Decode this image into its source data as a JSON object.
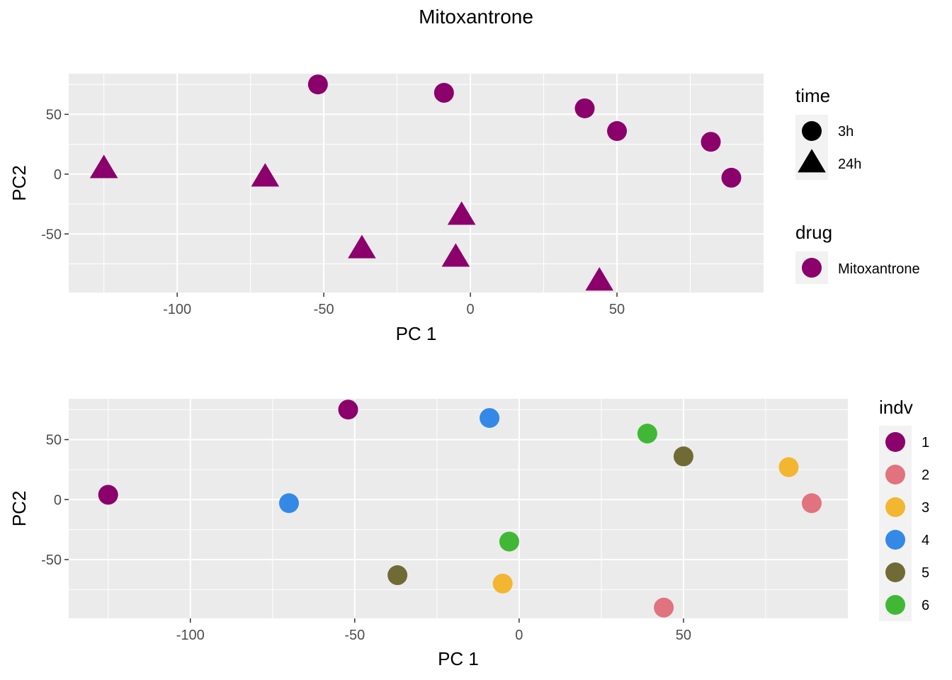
{
  "figure_title": "Mitoxantrone",
  "colors": {
    "panel_bg": "#EBEBEB",
    "grid_major": "#FFFFFF",
    "drug_mitoxantrone": "#8B006B",
    "indv": {
      "1": "#8B006B",
      "2": "#E0737D",
      "3": "#F2B630",
      "4": "#3489E6",
      "5": "#706B35",
      "6": "#40B836"
    }
  },
  "chart_data": [
    {
      "type": "scatter",
      "title": "",
      "xlabel": "PC 1",
      "ylabel": "PC2",
      "xlim": [
        -137,
        100
      ],
      "ylim": [
        -99,
        84
      ],
      "grid": true,
      "x_ticks": [
        -100,
        -50,
        0,
        50
      ],
      "x_tick_labels": [
        "-100",
        "-50",
        "0",
        "50"
      ],
      "y_ticks": [
        50,
        0,
        -50
      ],
      "y_tick_labels": [
        "50",
        "0",
        "-50"
      ],
      "legends": [
        {
          "title": "time",
          "entries": [
            {
              "label": "3h",
              "shape": "circle"
            },
            {
              "label": "24h",
              "shape": "triangle"
            }
          ]
        },
        {
          "title": "drug",
          "entries": [
            {
              "label": "Mitoxantrone",
              "shape": "circle",
              "color_key": "drug_mitoxantrone"
            }
          ]
        }
      ],
      "points": [
        {
          "x": -52,
          "y": 75,
          "time": "3h",
          "drug": "Mitoxantrone",
          "indv": "1"
        },
        {
          "x": -9,
          "y": 68,
          "time": "3h",
          "drug": "Mitoxantrone",
          "indv": "4"
        },
        {
          "x": 39,
          "y": 55,
          "time": "3h",
          "drug": "Mitoxantrone",
          "indv": "6"
        },
        {
          "x": 50,
          "y": 36,
          "time": "3h",
          "drug": "Mitoxantrone",
          "indv": "5"
        },
        {
          "x": 82,
          "y": 27,
          "time": "3h",
          "drug": "Mitoxantrone",
          "indv": "3"
        },
        {
          "x": 89,
          "y": -3,
          "time": "3h",
          "drug": "Mitoxantrone",
          "indv": "2"
        },
        {
          "x": -125,
          "y": 4,
          "time": "24h",
          "drug": "Mitoxantrone",
          "indv": "1"
        },
        {
          "x": -70,
          "y": -3,
          "time": "24h",
          "drug": "Mitoxantrone",
          "indv": "4"
        },
        {
          "x": -3,
          "y": -35,
          "time": "24h",
          "drug": "Mitoxantrone",
          "indv": "6"
        },
        {
          "x": -37,
          "y": -63,
          "time": "24h",
          "drug": "Mitoxantrone",
          "indv": "5"
        },
        {
          "x": -5,
          "y": -70,
          "time": "24h",
          "drug": "Mitoxantrone",
          "indv": "3"
        },
        {
          "x": 44,
          "y": -90,
          "time": "24h",
          "drug": "Mitoxantrone",
          "indv": "2"
        }
      ]
    },
    {
      "type": "scatter",
      "title": "",
      "xlabel": "PC 1",
      "ylabel": "PC2",
      "xlim": [
        -137,
        100
      ],
      "ylim": [
        -99,
        84
      ],
      "grid": true,
      "x_ticks": [
        -100,
        -50,
        0,
        50
      ],
      "x_tick_labels": [
        "-100",
        "-50",
        "0",
        "50"
      ],
      "y_ticks": [
        50,
        0,
        -50
      ],
      "y_tick_labels": [
        "50",
        "0",
        "-50"
      ],
      "legends": [
        {
          "title": "indv",
          "entries": [
            {
              "label": "1",
              "shape": "circle",
              "color_key": "1"
            },
            {
              "label": "2",
              "shape": "circle",
              "color_key": "2"
            },
            {
              "label": "3",
              "shape": "circle",
              "color_key": "3"
            },
            {
              "label": "4",
              "shape": "circle",
              "color_key": "4"
            },
            {
              "label": "5",
              "shape": "circle",
              "color_key": "5"
            },
            {
              "label": "6",
              "shape": "circle",
              "color_key": "6"
            }
          ]
        }
      ],
      "points": [
        {
          "x": -52,
          "y": 75,
          "indv": "1"
        },
        {
          "x": -9,
          "y": 68,
          "indv": "4"
        },
        {
          "x": 39,
          "y": 55,
          "indv": "6"
        },
        {
          "x": 50,
          "y": 36,
          "indv": "5"
        },
        {
          "x": 82,
          "y": 27,
          "indv": "3"
        },
        {
          "x": 89,
          "y": -3,
          "indv": "2"
        },
        {
          "x": -125,
          "y": 4,
          "indv": "1"
        },
        {
          "x": -70,
          "y": -3,
          "indv": "4"
        },
        {
          "x": -3,
          "y": -35,
          "indv": "6"
        },
        {
          "x": -37,
          "y": -63,
          "indv": "5"
        },
        {
          "x": -5,
          "y": -70,
          "indv": "3"
        },
        {
          "x": 44,
          "y": -90,
          "indv": "2"
        }
      ]
    }
  ]
}
